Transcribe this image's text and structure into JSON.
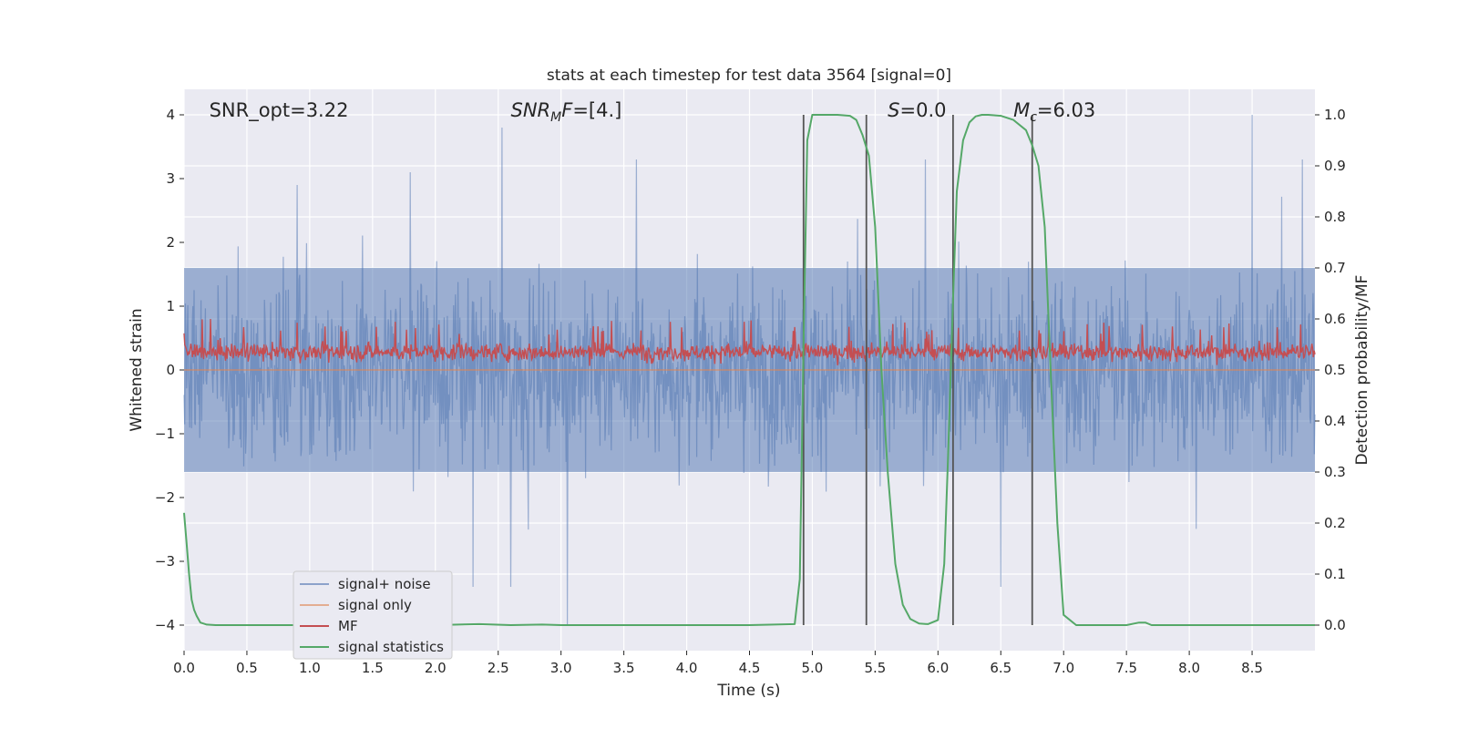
{
  "chart_data": {
    "type": "line",
    "title": "stats at each timestep for test data 3564 [signal=0]",
    "xlabel": "Time (s)",
    "ylabel": "Whitened strain",
    "ylabel_right": "Detection probability/MF",
    "xlim": [
      0.0,
      9.0
    ],
    "ylim": [
      -4.4,
      4.4
    ],
    "ylim_right": [
      -0.05,
      1.05
    ],
    "x_ticks": [
      0.0,
      0.5,
      1.0,
      1.5,
      2.0,
      2.5,
      3.0,
      3.5,
      4.0,
      4.5,
      5.0,
      5.5,
      6.0,
      6.5,
      7.0,
      7.5,
      8.0,
      8.5
    ],
    "x_tick_labels": [
      "0.0",
      "0.5",
      "1.0",
      "1.5",
      "2.0",
      "2.5",
      "3.0",
      "3.5",
      "4.0",
      "4.5",
      "5.0",
      "5.5",
      "6.0",
      "6.5",
      "7.0",
      "7.5",
      "8.0",
      "8.5"
    ],
    "y_ticks": [
      -4,
      -3,
      -2,
      -1,
      0,
      1,
      2,
      3,
      4
    ],
    "y_tick_labels": [
      "−4",
      "−3",
      "−2",
      "−1",
      "0",
      "1",
      "2",
      "3",
      "4"
    ],
    "y_right_ticks": [
      0.0,
      0.1,
      0.2,
      0.3,
      0.4,
      0.5,
      0.6,
      0.7,
      0.8,
      0.9,
      1.0
    ],
    "y_right_tick_labels": [
      "0.0",
      "0.1",
      "0.2",
      "0.3",
      "0.4",
      "0.5",
      "0.6",
      "0.7",
      "0.8",
      "0.9",
      "1.0"
    ],
    "grid": true,
    "legend_position": "lower-left",
    "annotations": [
      {
        "id": "snr-opt",
        "x": 0.2,
        "y": 4.1,
        "parts": [
          {
            "text": "SNR_opt=3.22",
            "italic": false,
            "sub": false
          }
        ]
      },
      {
        "id": "snr-mf",
        "x": 2.6,
        "y": 4.1,
        "parts": [
          {
            "text": "SNR",
            "italic": true,
            "sub": false
          },
          {
            "text": "M",
            "italic": true,
            "sub": true
          },
          {
            "text": "F",
            "italic": true,
            "sub": false
          },
          {
            "text": "=[4.]",
            "italic": false,
            "sub": false
          }
        ]
      },
      {
        "id": "s-value",
        "x": 5.6,
        "y": 4.1,
        "parts": [
          {
            "text": "S",
            "italic": true,
            "sub": false
          },
          {
            "text": "=0.0",
            "italic": false,
            "sub": false
          }
        ]
      },
      {
        "id": "mc-value",
        "x": 6.6,
        "y": 4.1,
        "parts": [
          {
            "text": "M",
            "italic": true,
            "sub": false
          },
          {
            "text": "c",
            "italic": true,
            "sub": true
          },
          {
            "text": "=6.03",
            "italic": false,
            "sub": false
          }
        ]
      }
    ],
    "vlines": [
      4.93,
      5.43,
      6.12,
      6.75
    ],
    "vline_range": [
      -4.0,
      4.0
    ],
    "series": [
      {
        "name": "signal+ noise",
        "color": "#4c72b0",
        "opacity": 0.5,
        "axis": "left",
        "note": "dense whitened noise trace",
        "samples": 1800,
        "band_core": 1.6,
        "extremes": [
          {
            "x": 2.53,
            "y": 3.8
          },
          {
            "x": 8.5,
            "y": 4.0
          },
          {
            "x": 3.05,
            "y": -4.0
          },
          {
            "x": 2.6,
            "y": -3.4
          },
          {
            "x": 6.5,
            "y": -3.4
          },
          {
            "x": 2.3,
            "y": -3.4
          },
          {
            "x": 0.9,
            "y": 2.9
          },
          {
            "x": 1.8,
            "y": 3.1
          },
          {
            "x": 3.6,
            "y": 3.3
          },
          {
            "x": 5.9,
            "y": 3.3
          },
          {
            "x": 8.9,
            "y": 3.3
          }
        ]
      },
      {
        "name": "signal only",
        "color": "#dd8452",
        "axis": "left",
        "x": [
          0.0,
          9.0
        ],
        "y": [
          0.0,
          0.0
        ]
      },
      {
        "name": "MF",
        "color": "#c44e52",
        "axis": "right",
        "note": "matched-filter output, dense trace",
        "samples": 1500,
        "center": 0.535,
        "range": [
          0.5,
          0.6
        ]
      },
      {
        "name": "signal statistics",
        "color": "#55a868",
        "axis": "right",
        "x": [
          0.0,
          0.02,
          0.04,
          0.06,
          0.08,
          0.1,
          0.13,
          0.18,
          0.25,
          0.4,
          1.0,
          1.5,
          2.0,
          2.35,
          2.6,
          2.85,
          3.0,
          3.5,
          4.0,
          4.5,
          4.86,
          4.9,
          4.93,
          4.96,
          5.0,
          5.1,
          5.2,
          5.3,
          5.35,
          5.4,
          5.45,
          5.5,
          5.55,
          5.6,
          5.66,
          5.72,
          5.78,
          5.85,
          5.92,
          6.0,
          6.05,
          6.08,
          6.12,
          6.15,
          6.2,
          6.25,
          6.3,
          6.35,
          6.4,
          6.5,
          6.6,
          6.7,
          6.75,
          6.8,
          6.85,
          6.9,
          6.95,
          7.0,
          7.1,
          7.5,
          7.6,
          7.65,
          7.7,
          7.75,
          8.0,
          8.5,
          9.0
        ],
        "y": [
          0.22,
          0.16,
          0.1,
          0.05,
          0.03,
          0.018,
          0.005,
          0.001,
          0.0,
          0.0,
          0.0,
          0.0,
          0.0,
          0.002,
          0.0,
          0.001,
          0.0,
          0.0,
          0.0,
          0.0,
          0.002,
          0.09,
          0.55,
          0.95,
          1.0,
          1.0,
          1.0,
          0.998,
          0.99,
          0.96,
          0.92,
          0.78,
          0.5,
          0.3,
          0.12,
          0.04,
          0.012,
          0.003,
          0.002,
          0.01,
          0.12,
          0.33,
          0.64,
          0.85,
          0.95,
          0.985,
          0.997,
          1.0,
          1.0,
          0.998,
          0.99,
          0.97,
          0.94,
          0.9,
          0.78,
          0.48,
          0.2,
          0.02,
          0.0,
          0.0,
          0.005,
          0.005,
          0.0,
          0.0,
          0.0,
          0.0,
          0.0
        ]
      }
    ]
  },
  "colors": {
    "plot_background": "#eaeaf2",
    "grid": "#ffffff",
    "vline": "#555555"
  }
}
